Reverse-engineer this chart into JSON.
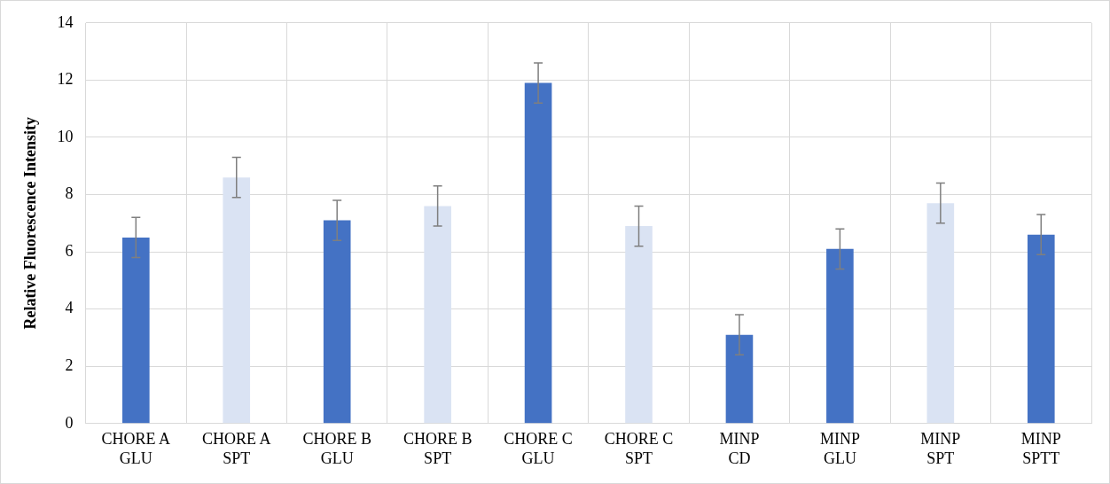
{
  "chart_data": {
    "type": "bar",
    "ylabel": "Relative Fluorescence Intensity",
    "categories": [
      "CHORE A GLU",
      "CHORE A SPT",
      "CHORE B GLU",
      "CHORE B SPT",
      "CHORE C GLU",
      "CHORE C SPT",
      "MINP CD",
      "MINP GLU",
      "MINP SPT",
      "MINP SPTT"
    ],
    "values": [
      6.5,
      8.6,
      7.1,
      7.6,
      11.9,
      6.9,
      3.1,
      6.1,
      7.7,
      6.6
    ],
    "colors": [
      "#4472c4",
      "#dae3f3",
      "#4472c4",
      "#dae3f3",
      "#4472c4",
      "#dae3f3",
      "#4472c4",
      "#4472c4",
      "#dae3f3",
      "#4472c4"
    ],
    "errors": [
      0.7,
      0.7,
      0.7,
      0.7,
      0.7,
      0.7,
      0.7,
      0.7,
      0.7,
      0.7
    ],
    "ylim": [
      0,
      14
    ],
    "yticks": [
      0,
      2,
      4,
      6,
      8,
      10,
      12,
      14
    ],
    "grid": true,
    "legend": false
  }
}
